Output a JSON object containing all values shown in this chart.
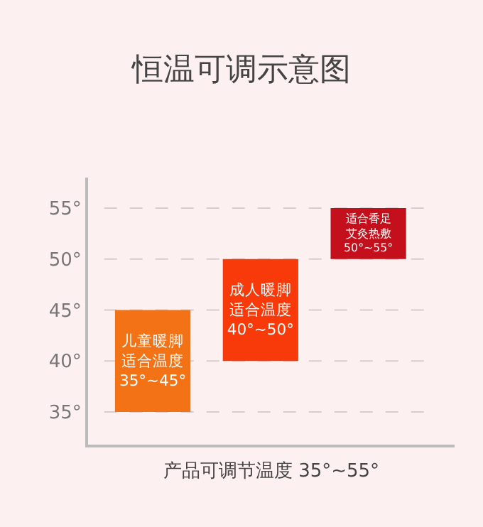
{
  "chart_data": {
    "type": "bar",
    "title": "恒温可调示意图",
    "xlabel": "产品可调节温度 35°~55°",
    "categories": [
      null,
      null,
      null
    ],
    "base": [
      35,
      40,
      50
    ],
    "values": [
      10,
      10,
      5
    ],
    "colors": [
      "#f47216",
      "#f83a0a",
      "#c4101c"
    ],
    "value_labels": [
      "儿童暖脚适合温度\n35°~45°",
      "成人暖脚适合温度\n40°~50°",
      "适合香足艾灸热敷\n50°~55°"
    ],
    "ylim": [
      31.8,
      58
    ],
    "yticks": [
      {
        "value": 35,
        "label": "35°"
      },
      {
        "value": 40,
        "label": "40°"
      },
      {
        "value": 45,
        "label": "45°"
      },
      {
        "value": 50,
        "label": "50°"
      },
      {
        "value": 55,
        "label": "55°"
      }
    ],
    "grid": "y",
    "legend": false
  }
}
